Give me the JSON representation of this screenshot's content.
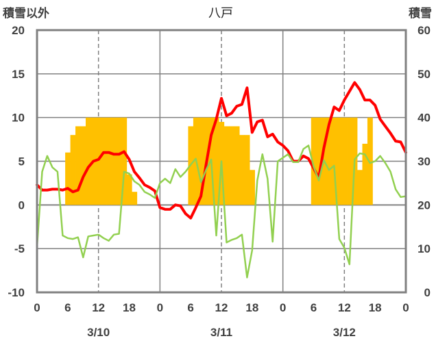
{
  "chart_data": {
    "type": "line",
    "title": "八戸",
    "ylabel_left": "積雪以外",
    "ylabel_right": "積雪",
    "ylim_left": [
      -10,
      20
    ],
    "ylim_right": [
      0,
      60
    ],
    "yticks_left": [
      "20",
      "15",
      "10",
      "5",
      "0",
      "-5",
      "-10"
    ],
    "yticks_right": [
      "60",
      "50",
      "40",
      "30",
      "20",
      "10",
      "0"
    ],
    "x_range": [
      0,
      72
    ],
    "xtick_labels": [
      "0",
      "6",
      "12",
      "18",
      "0",
      "6",
      "12",
      "18",
      "0",
      "6",
      "12",
      "18",
      "0"
    ],
    "date_labels": [
      "3/10",
      "3/11",
      "3/12"
    ],
    "colors": {
      "snow": "#FFC000",
      "temperature": "#FF0000",
      "other": "#92D050",
      "baseline": "#7030A0",
      "frame": "#808080",
      "grid": "#808080"
    },
    "series": [
      {
        "name": "",
        "kind": "bar",
        "axis": "right",
        "color": "#FFC000",
        "values": [
          [
            6,
            32
          ],
          [
            7,
            36
          ],
          [
            8,
            38
          ],
          [
            9,
            38
          ],
          [
            10,
            40
          ],
          [
            11,
            40
          ],
          [
            12,
            40
          ],
          [
            13,
            40
          ],
          [
            14,
            40
          ],
          [
            15,
            40
          ],
          [
            16,
            40
          ],
          [
            17,
            40
          ],
          [
            18,
            27
          ],
          [
            19,
            23
          ],
          [
            30,
            38
          ],
          [
            31,
            40
          ],
          [
            32,
            40
          ],
          [
            33,
            40
          ],
          [
            34,
            40
          ],
          [
            35,
            40
          ],
          [
            36,
            39
          ],
          [
            37,
            38
          ],
          [
            38,
            38
          ],
          [
            39,
            38
          ],
          [
            40,
            36
          ],
          [
            41,
            36
          ],
          [
            42,
            28
          ],
          [
            54,
            40
          ],
          [
            55,
            40
          ],
          [
            56,
            40
          ],
          [
            57,
            40
          ],
          [
            58,
            40
          ],
          [
            59,
            40
          ],
          [
            60,
            40
          ],
          [
            61,
            40
          ],
          [
            62,
            40
          ],
          [
            63,
            28
          ],
          [
            64,
            34
          ],
          [
            65,
            40
          ]
        ]
      },
      {
        "name": "",
        "kind": "line",
        "axis": "left",
        "color": "#FF0000",
        "values": [
          [
            0,
            2.3
          ],
          [
            1,
            1.7
          ],
          [
            2,
            1.7
          ],
          [
            3,
            1.8
          ],
          [
            4,
            1.8
          ],
          [
            5,
            1.7
          ],
          [
            6,
            1.9
          ],
          [
            7,
            1.5
          ],
          [
            8,
            1.7
          ],
          [
            9,
            3.2
          ],
          [
            10,
            4.3
          ],
          [
            11,
            5.0
          ],
          [
            12,
            5.2
          ],
          [
            13,
            6.0
          ],
          [
            14,
            6.0
          ],
          [
            15,
            5.8
          ],
          [
            16,
            5.8
          ],
          [
            17,
            6.1
          ],
          [
            18,
            5.2
          ],
          [
            19,
            3.8
          ],
          [
            20,
            3.1
          ],
          [
            21,
            2.3
          ],
          [
            22,
            2.0
          ],
          [
            23,
            1.6
          ],
          [
            24,
            -0.3
          ],
          [
            25,
            -0.5
          ],
          [
            26,
            -0.5
          ],
          [
            27,
            0.0
          ],
          [
            28,
            -0.1
          ],
          [
            29,
            -1.0
          ],
          [
            30,
            -1.5
          ],
          [
            31,
            -0.3
          ],
          [
            32,
            1.0
          ],
          [
            33,
            4.6
          ],
          [
            34,
            8.0
          ],
          [
            35,
            9.8
          ],
          [
            36,
            12.2
          ],
          [
            37,
            10.2
          ],
          [
            38,
            10.5
          ],
          [
            39,
            11.3
          ],
          [
            40,
            11.5
          ],
          [
            41,
            13.4
          ],
          [
            42,
            8.3
          ],
          [
            43,
            9.5
          ],
          [
            44,
            9.7
          ],
          [
            45,
            7.8
          ],
          [
            46,
            8.1
          ],
          [
            47,
            7.2
          ],
          [
            48,
            6.8
          ],
          [
            49,
            6.2
          ],
          [
            50,
            5.0
          ],
          [
            51,
            5.0
          ],
          [
            52,
            5.6
          ],
          [
            53,
            5.3
          ],
          [
            54,
            4.2
          ],
          [
            55,
            3.1
          ],
          [
            56,
            6.5
          ],
          [
            57,
            9.2
          ],
          [
            58,
            11.2
          ],
          [
            59,
            10.8
          ],
          [
            60,
            12.0
          ],
          [
            61,
            13.0
          ],
          [
            62,
            14.0
          ],
          [
            63,
            13.2
          ],
          [
            64,
            12.0
          ],
          [
            65,
            12.0
          ],
          [
            66,
            11.4
          ],
          [
            67,
            9.8
          ],
          [
            68,
            9.0
          ],
          [
            69,
            8.2
          ],
          [
            70,
            7.3
          ],
          [
            71,
            7.2
          ],
          [
            72,
            6.0
          ]
        ]
      },
      {
        "name": "",
        "kind": "line",
        "axis": "left",
        "color": "#92D050",
        "values": [
          [
            0,
            -4.8
          ],
          [
            1,
            3.8
          ],
          [
            2,
            5.6
          ],
          [
            3,
            4.3
          ],
          [
            4,
            3.8
          ],
          [
            5,
            -3.5
          ],
          [
            6,
            -3.8
          ],
          [
            7,
            -3.9
          ],
          [
            8,
            -3.7
          ],
          [
            9,
            -6.0
          ],
          [
            10,
            -3.6
          ],
          [
            11,
            -3.5
          ],
          [
            12,
            -3.4
          ],
          [
            13,
            -3.8
          ],
          [
            14,
            -4.1
          ],
          [
            15,
            -3.4
          ],
          [
            16,
            -3.3
          ],
          [
            17,
            3.8
          ],
          [
            18,
            3.6
          ],
          [
            19,
            2.7
          ],
          [
            20,
            2.3
          ],
          [
            21,
            1.5
          ],
          [
            22,
            1.2
          ],
          [
            23,
            0.8
          ],
          [
            24,
            2.5
          ],
          [
            25,
            3.0
          ],
          [
            26,
            2.5
          ],
          [
            27,
            4.1
          ],
          [
            28,
            3.2
          ],
          [
            29,
            3.8
          ],
          [
            30,
            4.6
          ],
          [
            31,
            5.3
          ],
          [
            32,
            2.6
          ],
          [
            33,
            4.0
          ],
          [
            34,
            5.2
          ],
          [
            35,
            -3.5
          ],
          [
            36,
            5.0
          ],
          [
            37,
            -4.3
          ],
          [
            38,
            -4.0
          ],
          [
            39,
            -3.8
          ],
          [
            40,
            -3.4
          ],
          [
            41,
            -8.3
          ],
          [
            42,
            -5.2
          ],
          [
            43,
            2.8
          ],
          [
            44,
            5.8
          ],
          [
            45,
            3.0
          ],
          [
            46,
            -4.2
          ],
          [
            47,
            5.0
          ],
          [
            48,
            5.4
          ],
          [
            49,
            5.8
          ],
          [
            50,
            4.9
          ],
          [
            51,
            4.9
          ],
          [
            52,
            6.4
          ],
          [
            53,
            6.8
          ],
          [
            54,
            4.4
          ],
          [
            55,
            2.8
          ],
          [
            56,
            5.1
          ],
          [
            57,
            4.0
          ],
          [
            58,
            4.5
          ],
          [
            59,
            -3.9
          ],
          [
            60,
            -4.9
          ],
          [
            61,
            -6.8
          ],
          [
            62,
            5.2
          ],
          [
            63,
            5.9
          ],
          [
            64,
            5.8
          ],
          [
            65,
            4.8
          ],
          [
            66,
            5.0
          ],
          [
            67,
            5.6
          ],
          [
            68,
            4.8
          ],
          [
            69,
            3.8
          ],
          [
            70,
            1.8
          ],
          [
            71,
            0.9
          ],
          [
            72,
            1.0
          ]
        ]
      },
      {
        "name": "",
        "kind": "line",
        "axis": "left",
        "color": "#7030A0",
        "values": [
          [
            0,
            -10
          ],
          [
            72,
            -10
          ]
        ]
      }
    ],
    "grid": {
      "horizontal": "solid",
      "vertical_noon": "dashed",
      "vertical_midnight": "solid"
    },
    "legend": "none"
  }
}
